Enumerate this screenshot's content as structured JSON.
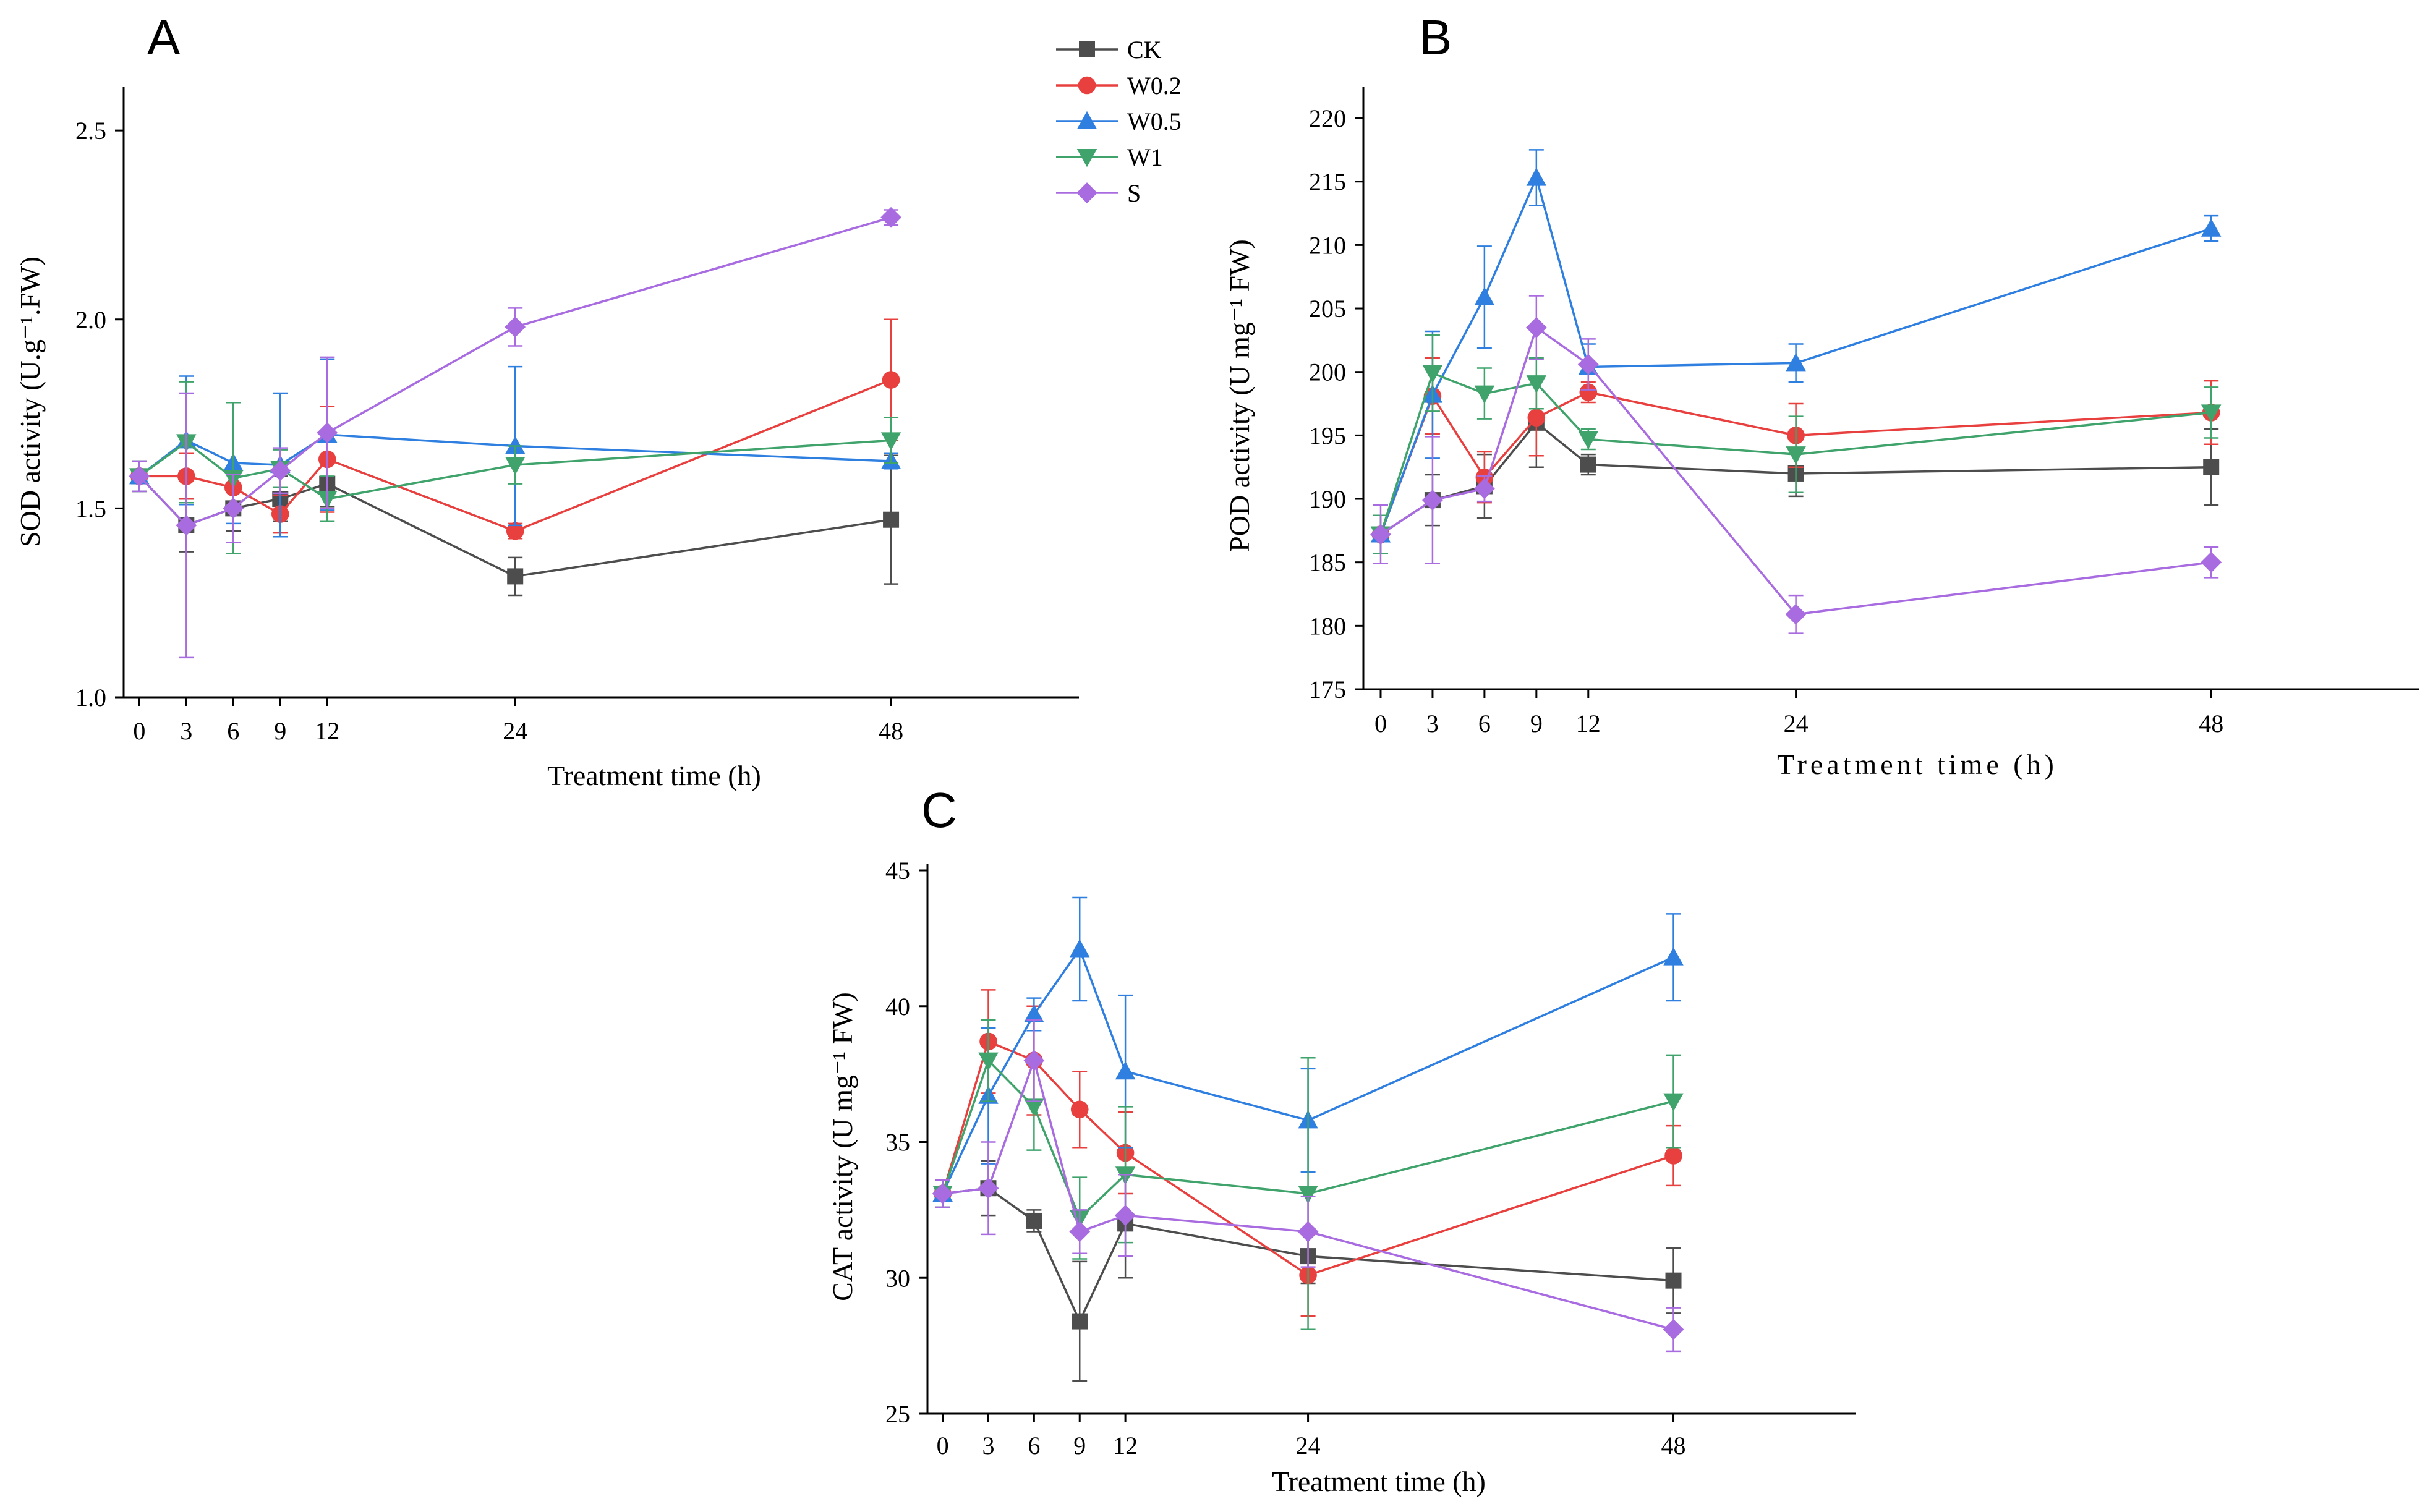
{
  "legend": [
    {
      "key": "CK",
      "label": "CK"
    },
    {
      "key": "W02",
      "label": "W0.2"
    },
    {
      "key": "W05",
      "label": "W0.5"
    },
    {
      "key": "W1",
      "label": "W1"
    },
    {
      "key": "S",
      "label": "S"
    }
  ],
  "series_style": {
    "CK": {
      "color": "#4d4d4d",
      "marker": "square"
    },
    "W02": {
      "color": "#e8403f",
      "marker": "circle"
    },
    "W05": {
      "color": "#2f7fe0",
      "marker": "triangle-up"
    },
    "W1": {
      "color": "#3fa36b",
      "marker": "triangle-down"
    },
    "S": {
      "color": "#a86be0",
      "marker": "diamond"
    }
  },
  "chart_data": [
    {
      "id": "A",
      "panel_label": "A",
      "type": "line",
      "xlabel": "Treatment time (h)",
      "ylabel": "SOD activity (U.g⁻¹.FW)",
      "x": [
        0,
        3,
        6,
        9,
        12,
        24,
        48
      ],
      "xlim": [
        -1,
        60
      ],
      "ylim": [
        1.0,
        2.6
      ],
      "yticks": [
        1.0,
        1.5,
        2.0,
        2.5
      ],
      "ytick_labels": [
        "1.0",
        "1.5",
        "2.0",
        "2.5"
      ],
      "series": [
        {
          "key": "CK",
          "name": "CK",
          "values": [
            1.585,
            1.455,
            1.5,
            1.525,
            1.565,
            1.32,
            1.47
          ],
          "err": [
            0.04,
            0.07,
            0.06,
            0.06,
            0.06,
            0.05,
            0.17
          ]
        },
        {
          "key": "W02",
          "name": "W0.2",
          "values": [
            1.585,
            1.585,
            1.555,
            1.485,
            1.63,
            1.44,
            1.84
          ],
          "err": [
            0.04,
            0.06,
            0.05,
            0.05,
            0.14,
            0.02,
            0.16
          ]
        },
        {
          "key": "W05",
          "name": "W0.5",
          "values": [
            1.585,
            1.68,
            1.62,
            1.615,
            1.695,
            1.665,
            1.625
          ],
          "err": [
            0.04,
            0.17,
            0.16,
            0.19,
            0.2,
            0.21,
            0.02
          ]
        },
        {
          "key": "W1",
          "name": "W1",
          "values": [
            1.585,
            1.675,
            1.58,
            1.605,
            1.525,
            1.615,
            1.68
          ],
          "err": [
            0.04,
            0.16,
            0.2,
            0.05,
            0.06,
            0.05,
            0.06
          ]
        },
        {
          "key": "S",
          "name": "S",
          "values": [
            1.585,
            1.455,
            1.5,
            1.6,
            1.7,
            1.98,
            2.27
          ],
          "err": [
            0.04,
            0.35,
            0.09,
            0.06,
            0.2,
            0.05,
            0.02
          ]
        }
      ]
    },
    {
      "id": "B",
      "panel_label": "B",
      "type": "line",
      "xlabel": "Treatment time (h)",
      "ylabel": "POD activity (U mg⁻¹ FW)",
      "x": [
        0,
        3,
        6,
        9,
        12,
        24,
        48
      ],
      "xlim": [
        -1,
        60
      ],
      "ylim": [
        175,
        222
      ],
      "yticks": [
        175,
        180,
        185,
        190,
        195,
        200,
        205,
        210,
        215,
        220
      ],
      "ytick_labels": [
        "175",
        "180",
        "185",
        "190",
        "195",
        "200",
        "205",
        "210",
        "215",
        "220"
      ],
      "series": [
        {
          "key": "CK",
          "name": "CK",
          "values": [
            187.2,
            189.9,
            191.0,
            196.0,
            192.7,
            192.0,
            192.5
          ],
          "err": [
            1.5,
            2.0,
            2.5,
            3.5,
            0.8,
            1.8,
            3.0
          ]
        },
        {
          "key": "W02",
          "name": "W0.2",
          "values": [
            187.2,
            198.1,
            191.7,
            196.4,
            198.4,
            195.0,
            196.8
          ],
          "err": [
            1.5,
            3.0,
            2.0,
            3.0,
            0.8,
            2.5,
            2.5
          ]
        },
        {
          "key": "W05",
          "name": "W0.5",
          "values": [
            187.2,
            198.2,
            205.9,
            215.3,
            200.4,
            200.7,
            211.3
          ],
          "err": [
            1.5,
            5.0,
            4.0,
            2.2,
            1.8,
            1.5,
            1.0
          ]
        },
        {
          "key": "W1",
          "name": "W1",
          "values": [
            187.2,
            199.9,
            198.3,
            199.1,
            194.7,
            193.5,
            196.8
          ],
          "err": [
            1.5,
            3.0,
            2.0,
            2.0,
            0.8,
            3.0,
            2.0
          ]
        },
        {
          "key": "S",
          "name": "S",
          "values": [
            187.2,
            189.9,
            190.8,
            203.5,
            200.6,
            180.9,
            185.0
          ],
          "err": [
            2.3,
            5.0,
            1.0,
            2.5,
            2.0,
            1.5,
            1.2
          ]
        }
      ]
    },
    {
      "id": "C",
      "panel_label": "C",
      "type": "line",
      "xlabel": "Treatment time (h)",
      "ylabel": "CAT activity (U mg⁻¹ FW)",
      "x": [
        0,
        3,
        6,
        9,
        12,
        24,
        48
      ],
      "xlim": [
        -1,
        60
      ],
      "ylim": [
        25,
        45
      ],
      "yticks": [
        25,
        30,
        35,
        40,
        45
      ],
      "ytick_labels": [
        "25",
        "30",
        "35",
        "40",
        "45"
      ],
      "series": [
        {
          "key": "CK",
          "name": "CK",
          "values": [
            33.1,
            33.3,
            32.1,
            28.4,
            32.0,
            30.8,
            29.9
          ],
          "err": [
            0.5,
            1.0,
            0.4,
            2.2,
            2.0,
            1.0,
            1.2
          ]
        },
        {
          "key": "W02",
          "name": "W0.2",
          "values": [
            33.1,
            38.7,
            38.0,
            36.2,
            34.6,
            30.1,
            34.5
          ],
          "err": [
            0.5,
            1.9,
            2.0,
            1.4,
            1.5,
            1.5,
            1.1
          ]
        },
        {
          "key": "W05",
          "name": "W0.5",
          "values": [
            33.1,
            36.7,
            39.7,
            42.1,
            37.6,
            35.8,
            41.8
          ],
          "err": [
            0.5,
            2.5,
            0.6,
            1.9,
            2.8,
            1.9,
            1.6
          ]
        },
        {
          "key": "W1",
          "name": "W1",
          "values": [
            33.1,
            38.0,
            36.3,
            32.2,
            33.8,
            33.1,
            36.5
          ],
          "err": [
            0.5,
            1.5,
            1.6,
            1.5,
            2.5,
            5.0,
            1.7
          ]
        },
        {
          "key": "S",
          "name": "S",
          "values": [
            33.1,
            33.3,
            38.0,
            31.7,
            32.3,
            31.7,
            28.1
          ],
          "err": [
            0.5,
            1.7,
            1.5,
            0.8,
            1.5,
            1.3,
            0.8
          ]
        }
      ]
    }
  ]
}
